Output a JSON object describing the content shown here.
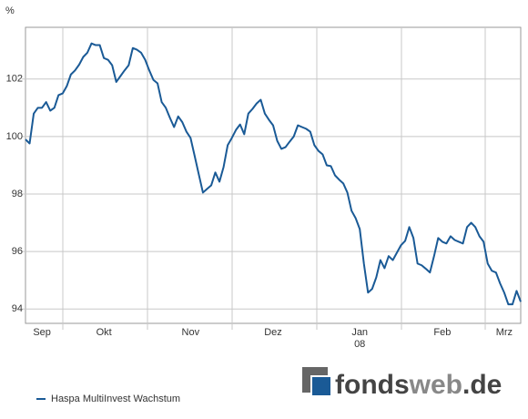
{
  "chart_data": {
    "type": "line",
    "y_unit": "%",
    "categories": [
      null,
      null,
      null,
      null,
      "Sep",
      null,
      null,
      null,
      null,
      null,
      null,
      null,
      null,
      null,
      null,
      null,
      null,
      null,
      null,
      "Okt",
      null,
      null,
      null,
      null,
      null,
      null,
      null,
      null,
      null,
      null,
      null,
      null,
      null,
      null,
      null,
      null,
      null,
      null,
      null,
      null,
      "Nov",
      null,
      null,
      null,
      null,
      null,
      null,
      null,
      null,
      null,
      null,
      null,
      null,
      null,
      null,
      null,
      null,
      null,
      null,
      null,
      "Dez",
      null,
      null,
      null,
      null,
      null,
      null,
      null,
      null,
      null,
      null,
      null,
      null,
      null,
      null,
      null,
      null,
      null,
      null,
      null,
      null,
      "Jan",
      null,
      null,
      null,
      null,
      null,
      null,
      null,
      null,
      null,
      null,
      null,
      null,
      null,
      null,
      null,
      null,
      null,
      null,
      null,
      "Feb",
      null,
      null,
      null,
      null,
      null,
      null,
      null,
      null,
      null,
      null,
      null,
      null,
      null,
      null,
      "Mrz",
      null,
      null,
      null,
      null
    ],
    "year_label": {
      "category_index": 81,
      "text": "08"
    },
    "series": [
      {
        "name": "Haspa MultiInvest Wachstum",
        "color": "#1a5a96",
        "values": [
          99.9,
          99.76,
          100.8,
          101.0,
          101.0,
          101.2,
          100.9,
          101.0,
          101.44,
          101.5,
          101.75,
          102.16,
          102.3,
          102.5,
          102.77,
          102.92,
          103.24,
          103.18,
          103.18,
          102.73,
          102.67,
          102.48,
          101.9,
          102.1,
          102.3,
          102.48,
          103.08,
          103.02,
          102.92,
          102.67,
          102.3,
          101.97,
          101.85,
          101.2,
          101.0,
          100.65,
          100.33,
          100.7,
          100.5,
          100.17,
          99.95,
          99.32,
          98.68,
          98.05,
          98.18,
          98.3,
          98.75,
          98.43,
          98.94,
          99.7,
          99.95,
          100.23,
          100.42,
          100.08,
          100.8,
          100.96,
          101.15,
          101.28,
          100.8,
          100.58,
          100.39,
          99.85,
          99.57,
          99.63,
          99.82,
          100.0,
          100.39,
          100.33,
          100.27,
          100.17,
          99.7,
          99.5,
          99.38,
          99.0,
          98.97,
          98.65,
          98.5,
          98.37,
          98.05,
          97.42,
          97.16,
          96.78,
          95.58,
          94.57,
          94.7,
          95.1,
          95.7,
          95.42,
          95.84,
          95.7,
          95.96,
          96.22,
          96.37,
          96.85,
          96.47,
          95.58,
          95.52,
          95.4,
          95.27,
          95.84,
          96.47,
          96.34,
          96.28,
          96.53,
          96.4,
          96.34,
          96.28,
          96.85,
          97.0,
          96.85,
          96.53,
          96.34,
          95.58,
          95.33,
          95.27,
          94.89,
          94.57,
          94.16,
          94.16,
          94.63,
          94.25
        ]
      }
    ],
    "ylim": [
      93.5,
      103.8
    ],
    "yticks": [
      94,
      96,
      98,
      100,
      102
    ],
    "grid": true
  },
  "logo": {
    "part1": "fonds",
    "part2": "web",
    "part3": ".de"
  }
}
